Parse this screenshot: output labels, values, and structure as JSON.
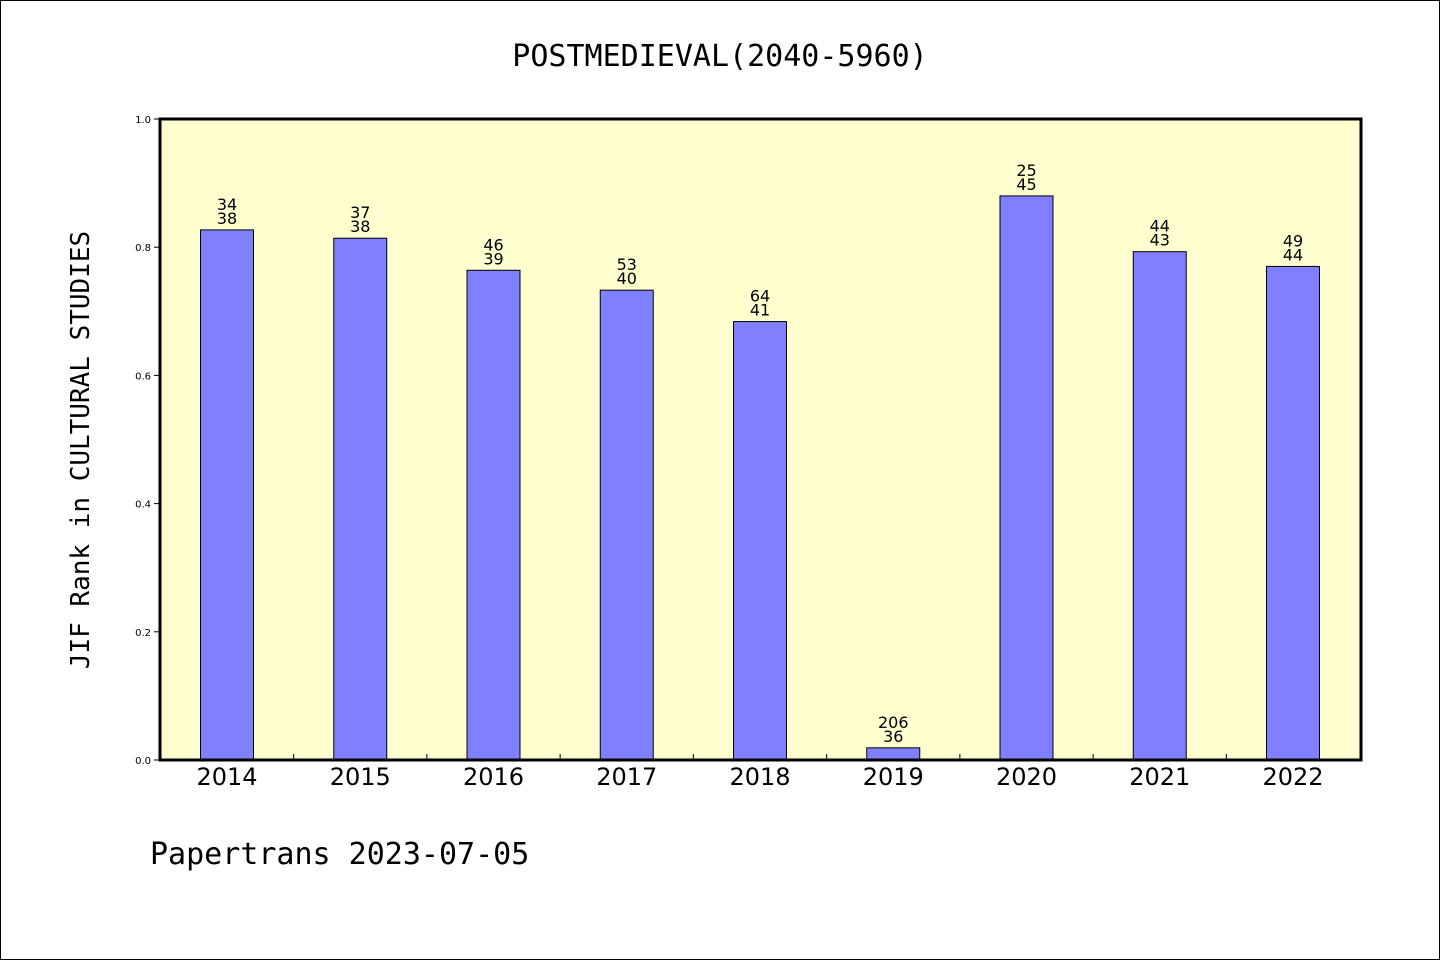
{
  "chart_data": {
    "type": "bar",
    "title": "POSTMEDIEVAL(2040-5960)",
    "xlabel": "",
    "ylabel": "JIF Rank in CULTURAL STUDIES",
    "ylim": [
      0,
      1.0
    ],
    "yticks": [
      "0.0",
      "0.2",
      "0.4",
      "0.6",
      "0.8",
      "1.0"
    ],
    "categories": [
      "2014",
      "2015",
      "2016",
      "2017",
      "2018",
      "2019",
      "2020",
      "2021",
      "2022"
    ],
    "values": [
      0.827,
      0.814,
      0.764,
      0.733,
      0.684,
      0.019,
      0.88,
      0.793,
      0.77
    ],
    "rank_labels": [
      "34",
      "37",
      "46",
      "53",
      "64",
      "206",
      "25",
      "44",
      "49"
    ],
    "total_labels": [
      "38",
      "38",
      "39",
      "40",
      "41",
      "36",
      "45",
      "43",
      "44"
    ],
    "grid": false,
    "legend": "none",
    "colors": {
      "bar": "#8080ff",
      "plot_background": "#ffffd0",
      "axis": "#000000"
    }
  },
  "footer": "Papertrans 2023-07-05"
}
